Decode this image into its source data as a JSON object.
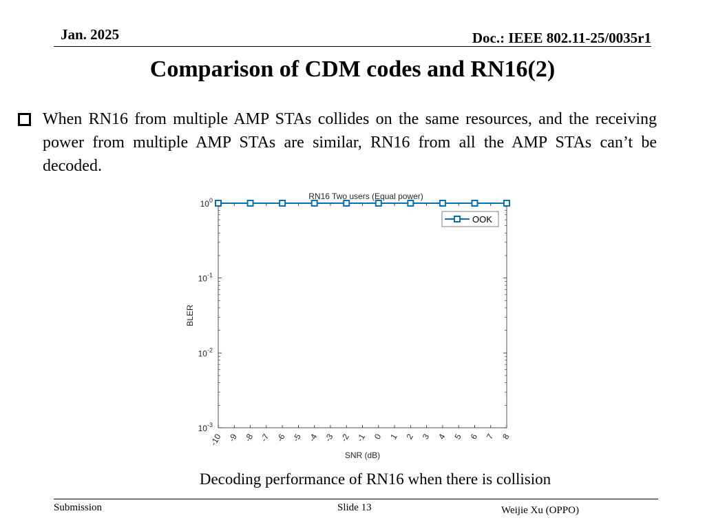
{
  "header": {
    "date": "Jan. 2025",
    "doc_id": "Doc.: IEEE 802.11-25/0035r1"
  },
  "slide": {
    "title": "Comparison of CDM codes and RN16(2)",
    "bullet_text": "When RN16 from multiple AMP STAs collides on the same resources, and the receiving power from multiple AMP STAs are similar, RN16 from all the AMP STAs can’t be decoded.",
    "caption": "Decoding performance of RN16 when there is collision"
  },
  "chart_data": {
    "type": "line",
    "title": "RN16 Two users (Equal power)",
    "xlabel": "SNR (dB)",
    "ylabel": "BLER",
    "xlim": [
      -10,
      8
    ],
    "ylim": [
      0.001,
      1
    ],
    "yscale": "log",
    "x_ticks": [
      "-10",
      "-9",
      "-8",
      "-7",
      "-6",
      "-5",
      "-4",
      "-3",
      "-2",
      "-1",
      "0",
      "1",
      "2",
      "3",
      "4",
      "5",
      "6",
      "7",
      "8"
    ],
    "y_ticks": [
      {
        "value": 1,
        "base": "10",
        "exp": "0"
      },
      {
        "value": 0.1,
        "base": "10",
        "exp": "-1"
      },
      {
        "value": 0.01,
        "base": "10",
        "exp": "-2"
      },
      {
        "value": 0.001,
        "base": "10",
        "exp": "-3"
      }
    ],
    "grid": false,
    "legend": "top-right",
    "series": [
      {
        "name": "OOK",
        "color": "#0072BD",
        "marker": "square",
        "x": [
          -10,
          -8,
          -6,
          -4,
          -2,
          0,
          2,
          4,
          6,
          8
        ],
        "y": [
          1,
          1,
          1,
          1,
          1,
          1,
          1,
          1,
          1,
          1
        ]
      }
    ]
  },
  "footer": {
    "left": "Submission",
    "center": "Slide 13",
    "right": "Weijie Xu (OPPO)"
  }
}
